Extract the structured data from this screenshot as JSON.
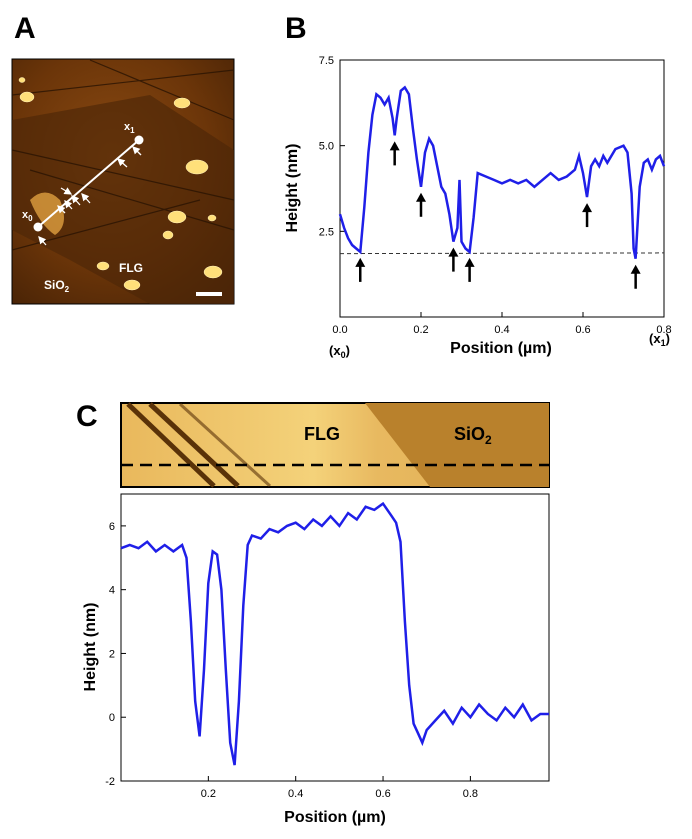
{
  "panels": {
    "a": "A",
    "b": "B",
    "c": "C"
  },
  "panel_a": {
    "x0_base": "x",
    "x0_sub": "0",
    "x1_base": "x",
    "x1_sub": "1",
    "flg": "FLG",
    "sio2_base": "SiO",
    "sio2_sub": "2"
  },
  "panel_c_image": {
    "flg": "FLG",
    "sio2_base": "SiO",
    "sio2_sub": "2"
  },
  "colors": {
    "line": "#1f1fe8",
    "dashed": "#333333",
    "afm_dark": "#3a1d05",
    "afm_bright": "#ffe08a"
  },
  "chart_data": [
    {
      "id": "B",
      "type": "line",
      "xlabel": "Position (µm)",
      "ylabel": "Height (nm)",
      "xlim": [
        0.0,
        0.8
      ],
      "ylim": [
        0.0,
        7.5
      ],
      "xticks": [
        "0.0",
        "0.2",
        "0.4",
        "0.6",
        "0.8"
      ],
      "yticks": [
        "2.5",
        "5.0",
        "7.5"
      ],
      "x_endpoint_labels": {
        "left_base": "(x",
        "left_sub": "0",
        "left_close": ")",
        "right_base": "(x",
        "right_sub": "1",
        "right_close": ")"
      },
      "reference_level": 1.85,
      "arrows_at_x": [
        0.05,
        0.135,
        0.2,
        0.28,
        0.32,
        0.61,
        0.73
      ],
      "x": [
        0.0,
        0.01,
        0.02,
        0.03,
        0.04,
        0.05,
        0.06,
        0.07,
        0.08,
        0.09,
        0.1,
        0.11,
        0.12,
        0.13,
        0.135,
        0.14,
        0.15,
        0.16,
        0.17,
        0.18,
        0.19,
        0.2,
        0.21,
        0.22,
        0.23,
        0.24,
        0.25,
        0.26,
        0.27,
        0.28,
        0.29,
        0.295,
        0.3,
        0.31,
        0.32,
        0.33,
        0.34,
        0.36,
        0.38,
        0.4,
        0.42,
        0.44,
        0.46,
        0.48,
        0.5,
        0.52,
        0.54,
        0.56,
        0.58,
        0.59,
        0.6,
        0.61,
        0.62,
        0.63,
        0.64,
        0.65,
        0.66,
        0.68,
        0.7,
        0.71,
        0.72,
        0.725,
        0.73,
        0.74,
        0.75,
        0.76,
        0.77,
        0.78,
        0.79,
        0.8
      ],
      "y": [
        3.0,
        2.6,
        2.3,
        2.1,
        2.0,
        1.9,
        3.2,
        4.8,
        5.9,
        6.5,
        6.4,
        6.2,
        6.4,
        5.8,
        5.3,
        5.8,
        6.6,
        6.7,
        6.5,
        5.5,
        4.6,
        3.8,
        4.8,
        5.2,
        5.0,
        4.4,
        3.8,
        3.6,
        3.0,
        2.2,
        2.6,
        4.0,
        2.2,
        2.0,
        1.9,
        2.9,
        4.2,
        4.1,
        4.0,
        3.9,
        4.0,
        3.9,
        4.0,
        3.8,
        4.0,
        4.2,
        4.0,
        4.1,
        4.3,
        4.7,
        4.2,
        3.5,
        4.4,
        4.6,
        4.4,
        4.7,
        4.5,
        4.9,
        5.0,
        4.8,
        3.6,
        2.0,
        1.7,
        3.8,
        4.5,
        4.6,
        4.3,
        4.6,
        4.7,
        4.4
      ]
    },
    {
      "id": "C",
      "type": "line",
      "xlabel": "Position (µm)",
      "ylabel": "Height (nm)",
      "xlim": [
        0.0,
        0.98
      ],
      "ylim": [
        -2,
        7
      ],
      "xticks": [
        "0.2",
        "0.4",
        "0.6",
        "0.8"
      ],
      "yticks": [
        "-2",
        "0",
        "2",
        "4",
        "6"
      ],
      "x": [
        0.0,
        0.02,
        0.04,
        0.06,
        0.08,
        0.1,
        0.12,
        0.14,
        0.15,
        0.16,
        0.17,
        0.18,
        0.19,
        0.2,
        0.21,
        0.22,
        0.23,
        0.24,
        0.25,
        0.26,
        0.27,
        0.28,
        0.29,
        0.3,
        0.32,
        0.34,
        0.36,
        0.38,
        0.4,
        0.42,
        0.44,
        0.46,
        0.48,
        0.5,
        0.52,
        0.54,
        0.56,
        0.58,
        0.6,
        0.62,
        0.63,
        0.64,
        0.65,
        0.66,
        0.67,
        0.68,
        0.69,
        0.7,
        0.72,
        0.74,
        0.76,
        0.78,
        0.8,
        0.82,
        0.84,
        0.86,
        0.88,
        0.9,
        0.92,
        0.94,
        0.96,
        0.98
      ],
      "y": [
        5.3,
        5.4,
        5.3,
        5.5,
        5.2,
        5.4,
        5.2,
        5.4,
        5.0,
        3.0,
        0.5,
        -0.6,
        1.5,
        4.2,
        5.2,
        5.1,
        4.0,
        1.5,
        -0.8,
        -1.5,
        0.5,
        3.5,
        5.4,
        5.7,
        5.6,
        5.9,
        5.8,
        6.0,
        6.1,
        5.9,
        6.2,
        6.0,
        6.3,
        6.0,
        6.4,
        6.2,
        6.6,
        6.5,
        6.7,
        6.3,
        6.1,
        5.5,
        3.0,
        1.0,
        -0.2,
        -0.5,
        -0.8,
        -0.4,
        -0.1,
        0.2,
        -0.2,
        0.3,
        0.0,
        0.4,
        0.1,
        -0.1,
        0.3,
        0.0,
        0.4,
        -0.1,
        0.1,
        0.1
      ]
    }
  ]
}
